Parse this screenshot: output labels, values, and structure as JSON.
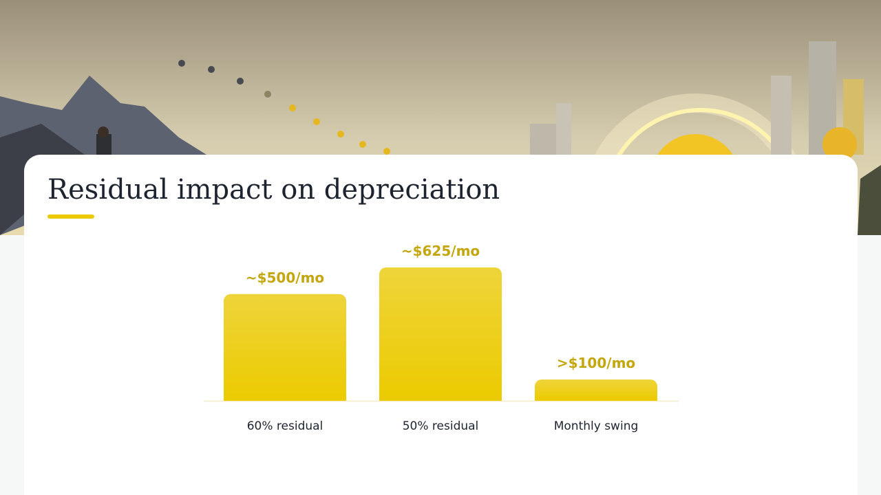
{
  "chart_data": {
    "type": "bar",
    "title": "Residual impact on depreciation",
    "categories": [
      "60% residual",
      "50% residual",
      "Monthly swing"
    ],
    "values": [
      500,
      625,
      100
    ],
    "value_labels": [
      "~$500/mo",
      "~$625/mo",
      ">$100/mo"
    ],
    "color": "#eccf1c"
  }
}
